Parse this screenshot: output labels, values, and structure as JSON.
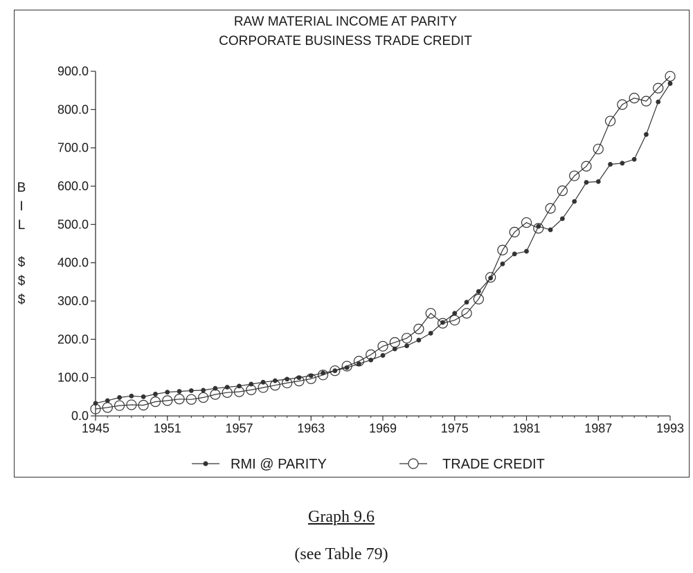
{
  "chart_data": {
    "type": "line",
    "title": "RAW MATERIAL INCOME AT PARITY",
    "subtitle": "CORPORATE BUSINESS TRADE CREDIT",
    "ylabel_letters": [
      "B",
      "I",
      "L",
      "",
      "$",
      "$",
      "$"
    ],
    "xlabel": "",
    "ylim": [
      0,
      900
    ],
    "xlim": [
      1945,
      1993
    ],
    "y_ticks": [
      "0.0",
      "100.0",
      "200.0",
      "300.0",
      "400.0",
      "500.0",
      "600.0",
      "700.0",
      "800.0",
      "900.0"
    ],
    "x_ticks": [
      "1945",
      "1951",
      "1957",
      "1963",
      "1969",
      "1975",
      "1981",
      "1987",
      "1993"
    ],
    "grid": false,
    "legend_position": "bottom",
    "x": [
      1945,
      1946,
      1947,
      1948,
      1949,
      1950,
      1951,
      1952,
      1953,
      1954,
      1955,
      1956,
      1957,
      1958,
      1959,
      1960,
      1961,
      1962,
      1963,
      1964,
      1965,
      1966,
      1967,
      1968,
      1969,
      1970,
      1971,
      1972,
      1973,
      1974,
      1975,
      1976,
      1977,
      1978,
      1979,
      1980,
      1981,
      1982,
      1983,
      1984,
      1985,
      1986,
      1987,
      1988,
      1989,
      1990,
      1991,
      1992,
      1993
    ],
    "series": [
      {
        "name": "RMI @ PARITY",
        "marker": "filled",
        "values": [
          33,
          40,
          48,
          52,
          50,
          57,
          62,
          64,
          66,
          67,
          72,
          75,
          78,
          83,
          88,
          92,
          96,
          100,
          105,
          112,
          118,
          126,
          136,
          146,
          158,
          175,
          183,
          198,
          216,
          244,
          268,
          297,
          325,
          360,
          397,
          423,
          430,
          495,
          486,
          515,
          560,
          610,
          612,
          657,
          660,
          670,
          735,
          820,
          868
        ]
      },
      {
        "name": "TRADE CREDIT",
        "marker": "open",
        "values": [
          18,
          22,
          27,
          29,
          28,
          37,
          40,
          44,
          43,
          48,
          56,
          61,
          63,
          68,
          74,
          80,
          86,
          91,
          97,
          107,
          118,
          130,
          143,
          160,
          182,
          192,
          203,
          227,
          268,
          242,
          250,
          268,
          305,
          362,
          433,
          480,
          505,
          490,
          542,
          588,
          627,
          652,
          697,
          770,
          813,
          830,
          822,
          856,
          887
        ]
      }
    ]
  },
  "caption": {
    "main": "Graph 9.6",
    "sub": "(see Table 79)"
  },
  "colors": {
    "line": "#333333",
    "marker_fill": "#333333",
    "background": "#ffffff"
  }
}
